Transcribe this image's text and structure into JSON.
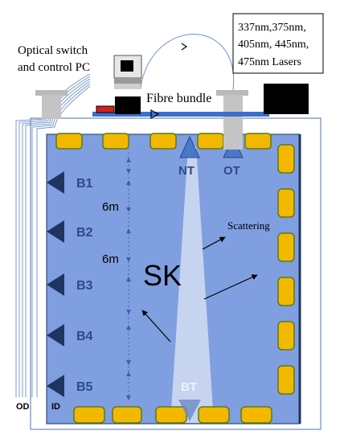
{
  "labels": {
    "optical_switch_line1": "Optical switch",
    "optical_switch_line2": "and control PC",
    "lasers_line1": "337nm,375nm,",
    "lasers_line2": "405nm, 445nm,",
    "lasers_line3": "475nm Lasers",
    "fibre_bundle": "Fibre bundle",
    "nt": "NT",
    "ot": "OT",
    "bt": "BT",
    "sk": "SK",
    "scattering": "Scattering",
    "od": "OD",
    "id": "ID",
    "distance_1": "6m",
    "distance_2": "6m"
  },
  "barrel_injectors": [
    "B1",
    "B2",
    "B3",
    "B4",
    "B5"
  ],
  "colors": {
    "tank_fill": "#7f9fe0",
    "pmt_fill": "#f2b800",
    "pmt_border": "#5a7a1a",
    "injector_fill": "#1f3560",
    "label_blue": "#2c4a86",
    "beam_fill": "#dfe6f6",
    "triangle_fill": "#4a78c8",
    "fibre_bundle": "#3a6fd0",
    "arrow_dark": "#000000"
  }
}
